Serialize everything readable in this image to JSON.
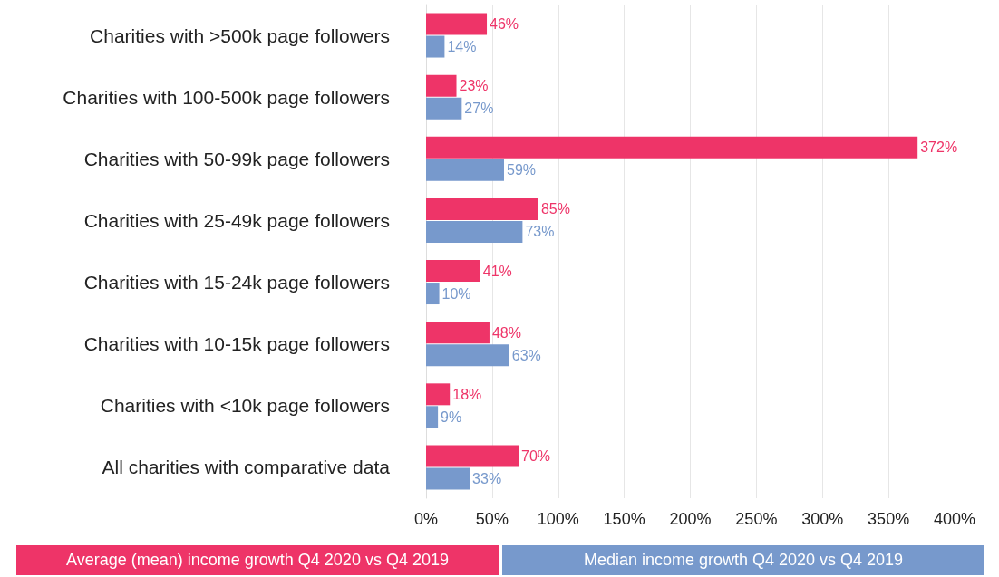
{
  "chart_data": {
    "type": "bar",
    "orientation": "horizontal",
    "categories": [
      "Charities with >500k page followers",
      "Charities with 100-500k page followers",
      "Charities with 50-99k page followers",
      "Charities with 25-49k page followers",
      "Charities with 15-24k page followers",
      "Charities with 10-15k page followers",
      "Charities with <10k page followers",
      "All charities with comparative data"
    ],
    "series": [
      {
        "name": "Average (mean) income growth Q4 2020 vs Q4 2019",
        "color": "#ee3468",
        "values": [
          46,
          23,
          372,
          85,
          41,
          48,
          18,
          70
        ],
        "value_labels": [
          "46%",
          "23%",
          "372%",
          "85%",
          "41%",
          "48%",
          "18%",
          "70%"
        ]
      },
      {
        "name": "Median income growth Q4 2020 vs Q4 2019",
        "color": "#7799cc",
        "values": [
          14,
          27,
          59,
          73,
          10,
          63,
          9,
          33
        ],
        "value_labels": [
          "14%",
          "27%",
          "59%",
          "73%",
          "10%",
          "63%",
          "9%",
          "33%"
        ]
      }
    ],
    "xlim": [
      0,
      400
    ],
    "xticks": [
      {
        "value": 0,
        "label": "0%"
      },
      {
        "value": 50,
        "label": "50%"
      },
      {
        "value": 100,
        "label": "100%"
      },
      {
        "value": 150,
        "label": "150%"
      },
      {
        "value": 200,
        "label": "200%"
      },
      {
        "value": 250,
        "label": "250%"
      },
      {
        "value": 300,
        "label": "300%"
      },
      {
        "value": 350,
        "label": "350%"
      },
      {
        "value": 400,
        "label": "400%"
      }
    ],
    "grid": "x",
    "legend": "bottom"
  }
}
